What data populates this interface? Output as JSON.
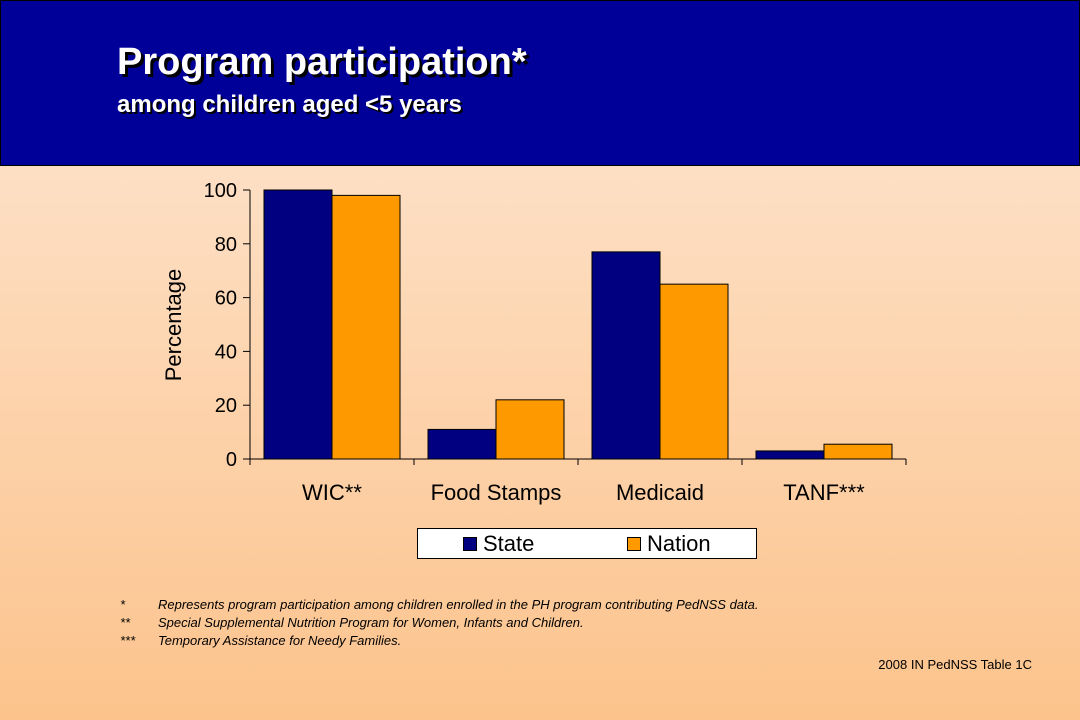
{
  "header": {
    "title": "Program participation*",
    "subtitle": "among children aged <5 years"
  },
  "colors": {
    "header_bg": "#000099",
    "state": "#000080",
    "nation": "#FF9900"
  },
  "chart_data": {
    "type": "bar",
    "title": "",
    "ylabel": "Percentage",
    "xlabel": "",
    "categories": [
      "WIC**",
      "Food Stamps",
      "Medicaid",
      "TANF***"
    ],
    "series": [
      {
        "name": "State",
        "color": "#000080",
        "values": [
          100,
          11,
          77,
          3
        ]
      },
      {
        "name": "Nation",
        "color": "#FF9900",
        "values": [
          98,
          22,
          65,
          5.5
        ]
      }
    ],
    "ylim": [
      0,
      100
    ],
    "yticks": [
      0,
      20,
      40,
      60,
      80,
      100
    ],
    "grid": false,
    "legend_position": "bottom"
  },
  "footnotes": [
    {
      "mark": "*",
      "text": "Represents program participation among children enrolled in the PH program contributing PedNSS data."
    },
    {
      "mark": "**",
      "text": "Special Supplemental Nutrition Program for Women, Infants and Children."
    },
    {
      "mark": "***",
      "text": "Temporary Assistance for Needy Families."
    }
  ],
  "source": "2008 IN PedNSS Table 1C"
}
